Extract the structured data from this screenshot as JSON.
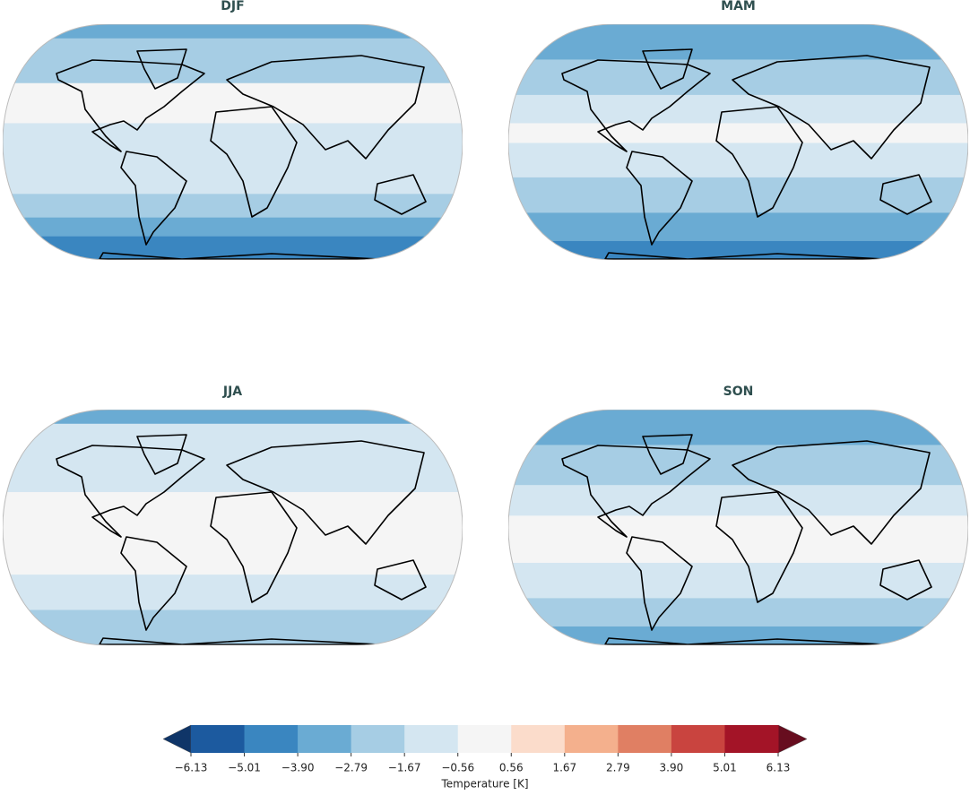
{
  "panels": [
    {
      "title": "DJF"
    },
    {
      "title": "MAM"
    },
    {
      "title": "JJA"
    },
    {
      "title": "SON"
    }
  ],
  "colorbar": {
    "label": "Temperature [K]",
    "ticks": [
      {
        "value": -6.13,
        "label": "−6.13"
      },
      {
        "value": -5.01,
        "label": "−5.01"
      },
      {
        "value": -3.9,
        "label": "−3.90"
      },
      {
        "value": -2.79,
        "label": "−2.79"
      },
      {
        "value": -1.67,
        "label": "−1.67"
      },
      {
        "value": -0.56,
        "label": "−0.56"
      },
      {
        "value": 0.56,
        "label": "0.56"
      },
      {
        "value": 1.67,
        "label": "1.67"
      },
      {
        "value": 2.79,
        "label": "2.79"
      },
      {
        "value": 3.9,
        "label": "3.90"
      },
      {
        "value": 5.01,
        "label": "5.01"
      },
      {
        "value": 6.13,
        "label": "6.13"
      }
    ],
    "colors": [
      "#1c5a9f",
      "#3a86c0",
      "#6aabd3",
      "#a6cde4",
      "#d4e6f1",
      "#f5f5f5",
      "#fbdccb",
      "#f4b08d",
      "#e07f63",
      "#c9443f",
      "#a31427"
    ],
    "under_color": "#0f3568",
    "over_color": "#670d1f"
  }
}
